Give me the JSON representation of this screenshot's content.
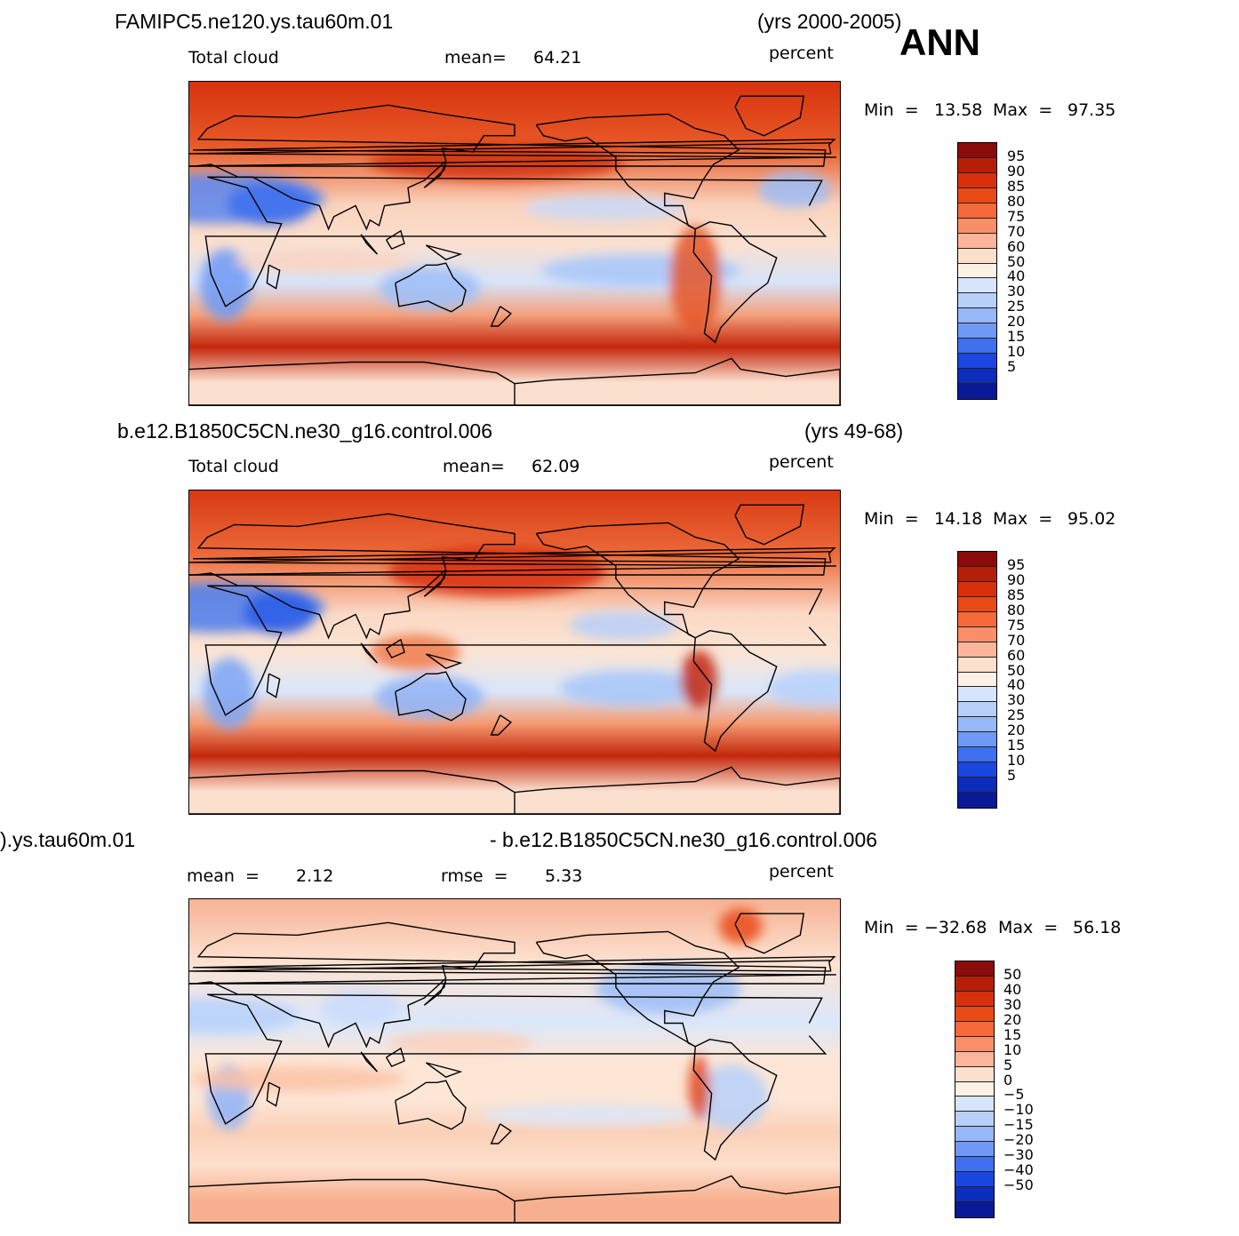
{
  "season": "ANN",
  "panels": [
    {
      "case": "FAMIPC5.ne120.ys.tau60m.01",
      "years": "(yrs 2000-2005)",
      "variable": "Total cloud",
      "stat1_label": "mean=",
      "stat1_value": "64.21",
      "stat2_label": "",
      "stat2_value": "",
      "units": "percent",
      "min_label": "Min  =",
      "min_value": "13.58",
      "max_label": "Max  =",
      "max_value": "97.35",
      "colorbar_levels": [
        "95",
        "90",
        "85",
        "80",
        "75",
        "70",
        "60",
        "50",
        "40",
        "30",
        "25",
        "20",
        "15",
        "10",
        "5"
      ],
      "colorbar_colors": [
        "#8b0a0a",
        "#b61e07",
        "#d8300c",
        "#ea4a15",
        "#f5693a",
        "#fa8e68",
        "#fcb59a",
        "#fde0cc",
        "#fdf1e6",
        "#d6e5fb",
        "#b7d0fa",
        "#97b8f8",
        "#6f99f4",
        "#3e70ef",
        "#1c46e0",
        "#0c2cbc",
        "#0a1a96"
      ],
      "field_stops": {
        "arctic": "#d7320e",
        "nmid": "#e85a28",
        "ntrop": "#fad2bc",
        "eq": "#fbe0cf",
        "strop": "#d6e4fa",
        "smid": "#f4a17d",
        "sstorm": "#c4260b",
        "antarctic": "#fbe0d0"
      }
    },
    {
      "case": "b.e12.B1850C5CN.ne30_g16.control.006",
      "years": "(yrs 49-68)",
      "variable": "Total cloud",
      "stat1_label": "mean=",
      "stat1_value": "62.09",
      "stat2_label": "",
      "stat2_value": "",
      "units": "percent",
      "min_label": "Min  =",
      "min_value": "14.18",
      "max_label": "Max  =",
      "max_value": "95.02",
      "colorbar_levels": [
        "95",
        "90",
        "85",
        "80",
        "75",
        "70",
        "60",
        "50",
        "40",
        "30",
        "25",
        "20",
        "15",
        "10",
        "5"
      ],
      "colorbar_colors": [
        "#8b0a0a",
        "#b61e07",
        "#d8300c",
        "#ea4a15",
        "#f5693a",
        "#fa8e68",
        "#fcb59a",
        "#fde0cc",
        "#fdf1e6",
        "#d6e5fb",
        "#b7d0fa",
        "#97b8f8",
        "#6f99f4",
        "#3e70ef",
        "#1c46e0",
        "#0c2cbc",
        "#0a1a96"
      ],
      "field_stops": {
        "arctic": "#d83a12",
        "nmid": "#ec6a3a",
        "ntrop": "#fbd9c5",
        "eq": "#fbe4d4",
        "strop": "#dae7fb",
        "smid": "#f59a72",
        "sstorm": "#c3270b",
        "antarctic": "#fbe0d0"
      }
    },
    {
      "case_left": ").ys.tau60m.01",
      "case_right": "- b.e12.B1850C5CN.ne30_g16.control.006",
      "stat1_label": "mean  =",
      "stat1_value": "2.12",
      "stat2_label": "rmse  =",
      "stat2_value": "5.33",
      "units": "percent",
      "min_label": "Min  =",
      "min_value": "−32.68",
      "max_label": "Max  =",
      "max_value": "56.18",
      "colorbar_levels": [
        "50",
        "40",
        "30",
        "20",
        "15",
        "10",
        "5",
        "0",
        "−5",
        "−10",
        "−15",
        "−20",
        "−30",
        "−40",
        "−50"
      ],
      "colorbar_colors": [
        "#8b0a0a",
        "#b61e07",
        "#d8300c",
        "#ea4a15",
        "#f5693a",
        "#fa8e68",
        "#fcb59a",
        "#fde0cc",
        "#fdf1e6",
        "#d6e5fb",
        "#b7d0fa",
        "#97b8f8",
        "#6f99f4",
        "#3e70ef",
        "#1c46e0",
        "#0c2cbc",
        "#0a1a96"
      ],
      "field_stops": {
        "arctic": "#f7b295",
        "nmid": "#fde3d2",
        "ntrop": "#dbe7fb",
        "eq": "#fde6d6",
        "strop": "#fde6d6",
        "smid": "#fbd0b8",
        "sstorm": "#fde0ce",
        "antarctic": "#f7b08f"
      }
    }
  ]
}
